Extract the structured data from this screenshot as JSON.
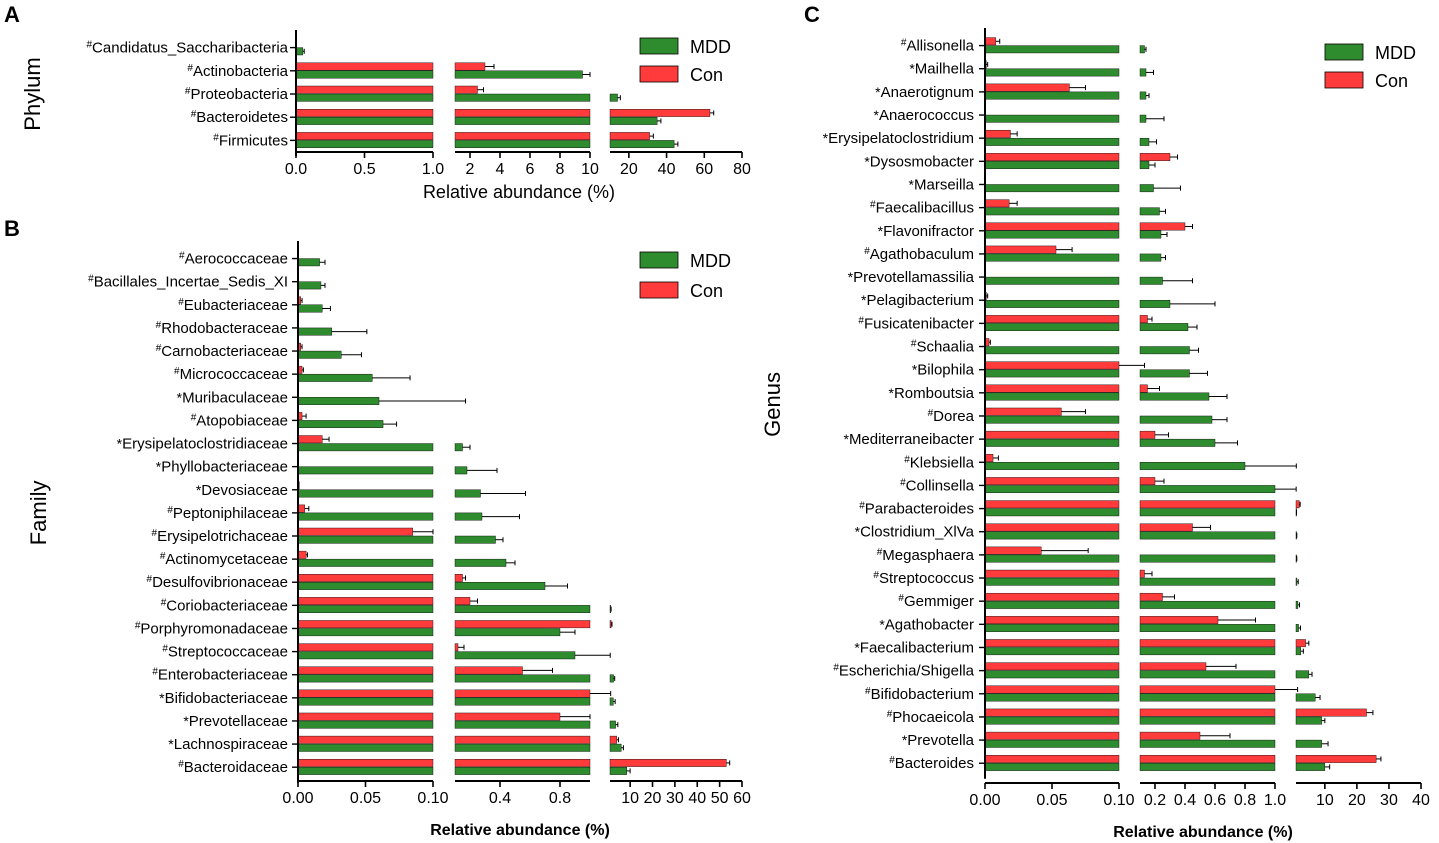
{
  "colors": {
    "mdd": "#2e8b2e",
    "con": "#ff3b3b",
    "axis": "#000000"
  },
  "chart_data": [
    {
      "panel": "A",
      "type": "bar",
      "orientation": "horizontal",
      "ylabel": "Phylum",
      "xlabel": "Relative abundance (%)",
      "segments": [
        {
          "range": [
            0,
            1.0
          ],
          "ticks": [
            "0.0",
            "0.5",
            "1.0"
          ],
          "tick_values": [
            0,
            0.5,
            1.0
          ]
        },
        {
          "range": [
            1.0,
            10
          ],
          "ticks": [
            "2",
            "4",
            "6",
            "8",
            "10"
          ],
          "tick_values": [
            2,
            4,
            6,
            8,
            10
          ]
        },
        {
          "range": [
            10,
            80
          ],
          "ticks": [
            "20",
            "40",
            "60",
            "80"
          ],
          "tick_values": [
            20,
            40,
            60,
            80
          ]
        }
      ],
      "legend": {
        "position": "top-right",
        "entries": [
          "MDD",
          "Con"
        ]
      },
      "categories": [
        {
          "mark": "#",
          "name": "Candidatus_Saccharibacteria"
        },
        {
          "mark": "#",
          "name": "Actinobacteria"
        },
        {
          "mark": "#",
          "name": "Proteobacteria"
        },
        {
          "mark": "#",
          "name": "Bacteroidetes"
        },
        {
          "mark": "#",
          "name": "Firmicutes"
        }
      ],
      "series": [
        {
          "name": "Con",
          "values": [
            0.0,
            3.0,
            2.5,
            63,
            31
          ],
          "errors": [
            0,
            0.6,
            0.4,
            2,
            2
          ]
        },
        {
          "name": "MDD",
          "values": [
            0.05,
            9.5,
            14,
            35,
            44
          ],
          "errors": [
            0.01,
            0.5,
            1.5,
            2,
            2
          ]
        }
      ]
    },
    {
      "panel": "B",
      "type": "bar",
      "orientation": "horizontal",
      "ylabel": "Family",
      "xlabel": "Relative abundance (%)",
      "segments": [
        {
          "range": [
            0,
            0.1
          ],
          "ticks": [
            "0.00",
            "0.05",
            "0.10"
          ],
          "tick_values": [
            0,
            0.05,
            0.1
          ]
        },
        {
          "range": [
            0.1,
            1.0
          ],
          "ticks": [
            "0.4",
            "0.8"
          ],
          "tick_values": [
            0.4,
            0.8
          ]
        },
        {
          "range": [
            1.0,
            60
          ],
          "ticks": [
            "10",
            "20",
            "30",
            "40",
            "50",
            "60"
          ],
          "tick_values": [
            10,
            20,
            30,
            40,
            50,
            60
          ]
        }
      ],
      "legend": {
        "position": "top-right",
        "entries": [
          "MDD",
          "Con"
        ]
      },
      "categories": [
        {
          "mark": "#",
          "name": "Aerococcaceae"
        },
        {
          "mark": "#",
          "name": "Bacillales_Incertae_Sedis_XI"
        },
        {
          "mark": "#",
          "name": "Eubacteriaceae"
        },
        {
          "mark": "#",
          "name": "Rhodobacteraceae"
        },
        {
          "mark": "#",
          "name": "Carnobacteriaceae"
        },
        {
          "mark": "#",
          "name": "Micrococcaceae"
        },
        {
          "mark": "*",
          "name": "Muribaculaceae"
        },
        {
          "mark": "#",
          "name": "Atopobiaceae"
        },
        {
          "mark": "*",
          "name": "Erysipelatoclostridiaceae"
        },
        {
          "mark": "*",
          "name": "Phyllobacteriaceae"
        },
        {
          "mark": "*",
          "name": "Devosiaceae"
        },
        {
          "mark": "#",
          "name": "Peptoniphilaceae"
        },
        {
          "mark": "#",
          "name": "Erysipelotrichaceae"
        },
        {
          "mark": "#",
          "name": "Actinomycetaceae"
        },
        {
          "mark": "#",
          "name": "Desulfovibrionaceae"
        },
        {
          "mark": "#",
          "name": "Coriobacteriaceae"
        },
        {
          "mark": "#",
          "name": "Porphyromonadaceae"
        },
        {
          "mark": "#",
          "name": "Streptococcaceae"
        },
        {
          "mark": "#",
          "name": "Enterobacteriaceae"
        },
        {
          "mark": "*",
          "name": "Bifidobacteriaceae"
        },
        {
          "mark": "*",
          "name": "Prevotellaceae"
        },
        {
          "mark": "*",
          "name": "Lachnospiraceae"
        },
        {
          "mark": "#",
          "name": "Bacteroidaceae"
        }
      ],
      "series": [
        {
          "name": "Con",
          "values": [
            0,
            0,
            0.002,
            0,
            0.002,
            0.003,
            0,
            0.003,
            0.018,
            0,
            0.001,
            0.005,
            0.085,
            0.006,
            0.15,
            0.2,
            1.5,
            0.12,
            0.55,
            1.0,
            0.8,
            4.0,
            53
          ],
          "errors": [
            0,
            0,
            0.001,
            0,
            0.001,
            0.001,
            0,
            0.003,
            0.005,
            0,
            0,
            0.003,
            0.015,
            0.001,
            0.02,
            0.05,
            0.4,
            0.04,
            0.2,
            0.3,
            0.2,
            0.8,
            1.5
          ]
        },
        {
          "name": "MDD",
          "values": [
            0.016,
            0.017,
            0.018,
            0.025,
            0.032,
            0.055,
            0.06,
            0.063,
            0.15,
            0.18,
            0.27,
            0.28,
            0.37,
            0.44,
            0.7,
            1.3,
            0.8,
            0.9,
            2.6,
            2.5,
            3.5,
            6.0,
            8.5
          ],
          "errors": [
            0.004,
            0.003,
            0.006,
            0.026,
            0.015,
            0.028,
            0.11,
            0.01,
            0.05,
            0.2,
            0.3,
            0.25,
            0.05,
            0.06,
            0.15,
            0.2,
            0.1,
            0.2,
            0.5,
            0.8,
            1.0,
            1.0,
            1.5
          ]
        }
      ]
    },
    {
      "panel": "C",
      "type": "bar",
      "orientation": "horizontal",
      "ylabel": "Genus",
      "xlabel": "Relative abundance (%)",
      "segments": [
        {
          "range": [
            0,
            0.1
          ],
          "ticks": [
            "0.00",
            "0.05",
            "0.10"
          ],
          "tick_values": [
            0,
            0.05,
            0.1
          ]
        },
        {
          "range": [
            0.1,
            1.0
          ],
          "ticks": [
            "0.2",
            "0.4",
            "0.6",
            "0.8",
            "1.0"
          ],
          "tick_values": [
            0.2,
            0.4,
            0.6,
            0.8,
            1.0
          ]
        },
        {
          "range": [
            1.0,
            40
          ],
          "ticks": [
            "10",
            "20",
            "30",
            "40"
          ],
          "tick_values": [
            10,
            20,
            30,
            40
          ]
        }
      ],
      "legend": {
        "position": "top-right",
        "entries": [
          "MDD",
          "Con"
        ]
      },
      "categories": [
        {
          "mark": "#",
          "name": "Allisonella"
        },
        {
          "mark": "*",
          "name": "Mailhella"
        },
        {
          "mark": "*",
          "name": "Anaerotignum"
        },
        {
          "mark": "*",
          "name": "Anaerococcus"
        },
        {
          "mark": "*",
          "name": "Erysipelatoclostridium"
        },
        {
          "mark": "*",
          "name": "Dysosmobacter"
        },
        {
          "mark": "*",
          "name": "Marseilla"
        },
        {
          "mark": "#",
          "name": "Faecalibacillus"
        },
        {
          "mark": "*",
          "name": "Flavonifractor"
        },
        {
          "mark": "#",
          "name": "Agathobaculum"
        },
        {
          "mark": "*",
          "name": "Prevotellamassilia"
        },
        {
          "mark": "*",
          "name": "Pelagibacterium"
        },
        {
          "mark": "#",
          "name": "Fusicatenibacter"
        },
        {
          "mark": "#",
          "name": "Schaalia"
        },
        {
          "mark": "*",
          "name": "Bilophila"
        },
        {
          "mark": "*",
          "name": "Romboutsia"
        },
        {
          "mark": "#",
          "name": "Dorea"
        },
        {
          "mark": "*",
          "name": "Mediterraneibacter"
        },
        {
          "mark": "#",
          "name": "Klebsiella"
        },
        {
          "mark": "#",
          "name": "Collinsella"
        },
        {
          "mark": "#",
          "name": "Parabacteroides"
        },
        {
          "mark": "*",
          "name": "Clostridium_XlVa"
        },
        {
          "mark": "#",
          "name": "Megasphaera"
        },
        {
          "mark": "#",
          "name": "Streptococcus"
        },
        {
          "mark": "#",
          "name": "Gemmiger"
        },
        {
          "mark": "*",
          "name": "Agathobacter"
        },
        {
          "mark": "*",
          "name": "Faecalibacterium"
        },
        {
          "mark": "#",
          "name": "Escherichia/Shigella"
        },
        {
          "mark": "#",
          "name": "Bifidobacterium"
        },
        {
          "mark": "#",
          "name": "Phocaeicola"
        },
        {
          "mark": "*",
          "name": "Prevotella"
        },
        {
          "mark": "#",
          "name": "Bacteroides"
        }
      ],
      "series": [
        {
          "name": "Con",
          "values": [
            0.008,
            0.001,
            0.063,
            0,
            0.019,
            0.3,
            0,
            0.018,
            0.4,
            0.053,
            0,
            0.001,
            0.15,
            0.003,
            0.1,
            0.15,
            0.057,
            0.2,
            0.006,
            0.2,
            2.0,
            0.45,
            0.042,
            0.13,
            0.25,
            0.62,
            4.0,
            0.54,
            1.0,
            23,
            0.5,
            26
          ],
          "errors": [
            0.003,
            0.001,
            0.012,
            0,
            0.005,
            0.05,
            0,
            0.006,
            0.05,
            0.012,
            0,
            0.001,
            0.03,
            0.001,
            0.03,
            0.08,
            0.018,
            0.09,
            0.004,
            0.06,
            0.3,
            0.12,
            0.035,
            0.05,
            0.08,
            0.25,
            1.0,
            0.2,
            0.5,
            2.0,
            0.2,
            1.5
          ]
        },
        {
          "name": "MDD",
          "values": [
            0.13,
            0.14,
            0.14,
            0.14,
            0.16,
            0.16,
            0.19,
            0.23,
            0.24,
            0.24,
            0.25,
            0.3,
            0.42,
            0.43,
            0.43,
            0.56,
            0.58,
            0.6,
            0.8,
            1.0,
            1.05,
            1.1,
            1.15,
            1.3,
            1.6,
            1.8,
            2.5,
            5.0,
            7.0,
            9.0,
            9.0,
            10.0
          ],
          "errors": [
            0.01,
            0.05,
            0.02,
            0.12,
            0.05,
            0.04,
            0.18,
            0.04,
            0.04,
            0.03,
            0.2,
            0.3,
            0.06,
            0.06,
            0.12,
            0.12,
            0.1,
            0.15,
            0.3,
            0.05,
            0.1,
            0.15,
            0.1,
            0.4,
            0.5,
            0.6,
            0.8,
            1.0,
            1.5,
            1.0,
            2.0,
            1.5
          ]
        }
      ]
    }
  ],
  "labels": {
    "panel_a": "A",
    "panel_b": "B",
    "panel_c": "C"
  }
}
